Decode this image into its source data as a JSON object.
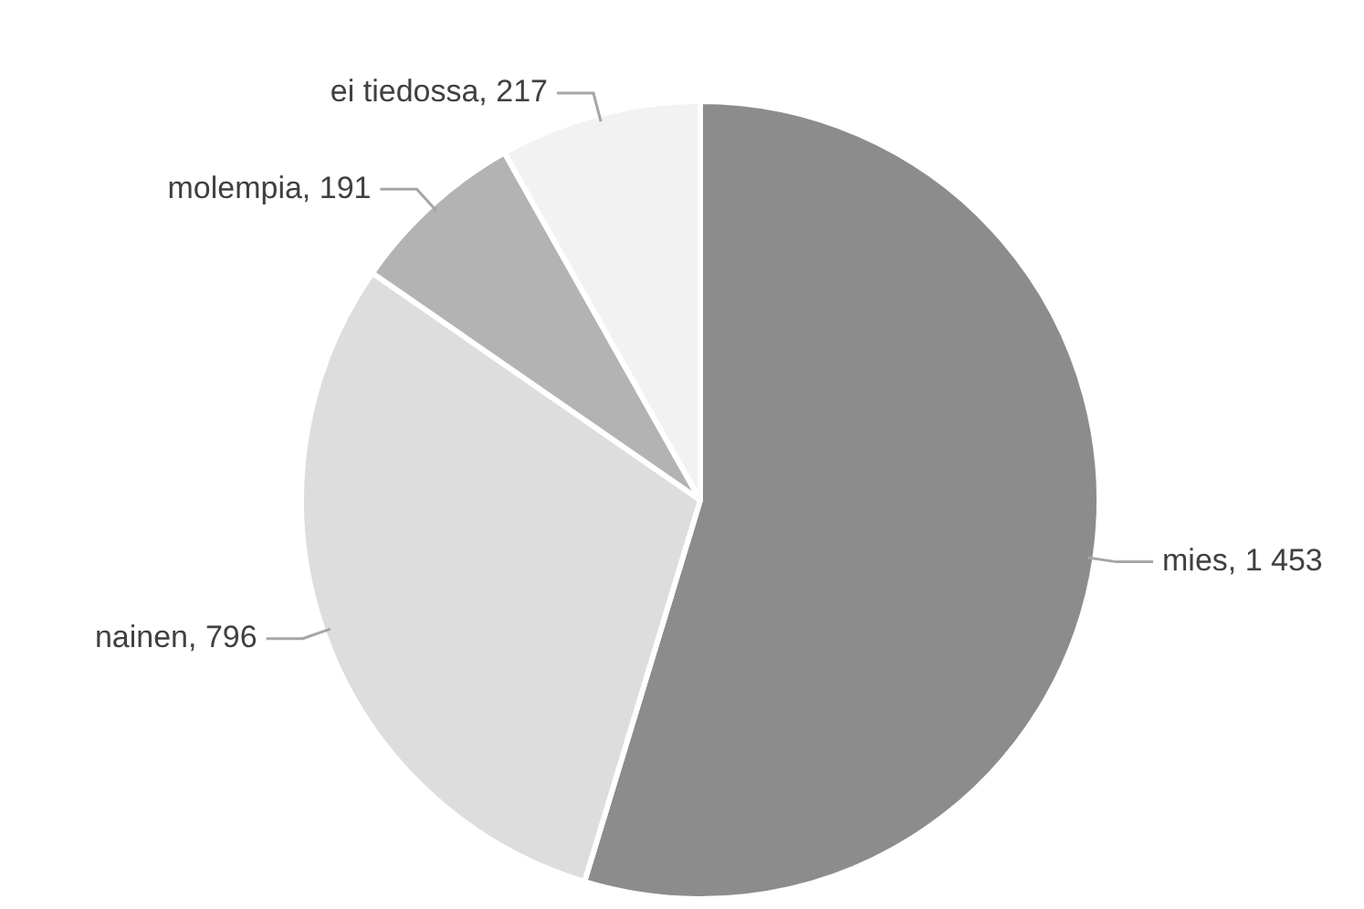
{
  "chart_data": {
    "type": "pie",
    "categories": [
      "mies",
      "nainen",
      "molempia",
      "ei tiedossa"
    ],
    "values": [
      1453,
      796,
      191,
      217
    ],
    "value_labels": [
      "1 453",
      "796",
      "191",
      "217"
    ],
    "colors": [
      "#8c8c8c",
      "#dddddd",
      "#b3b3b3",
      "#f2f2f2"
    ],
    "legend": false
  }
}
